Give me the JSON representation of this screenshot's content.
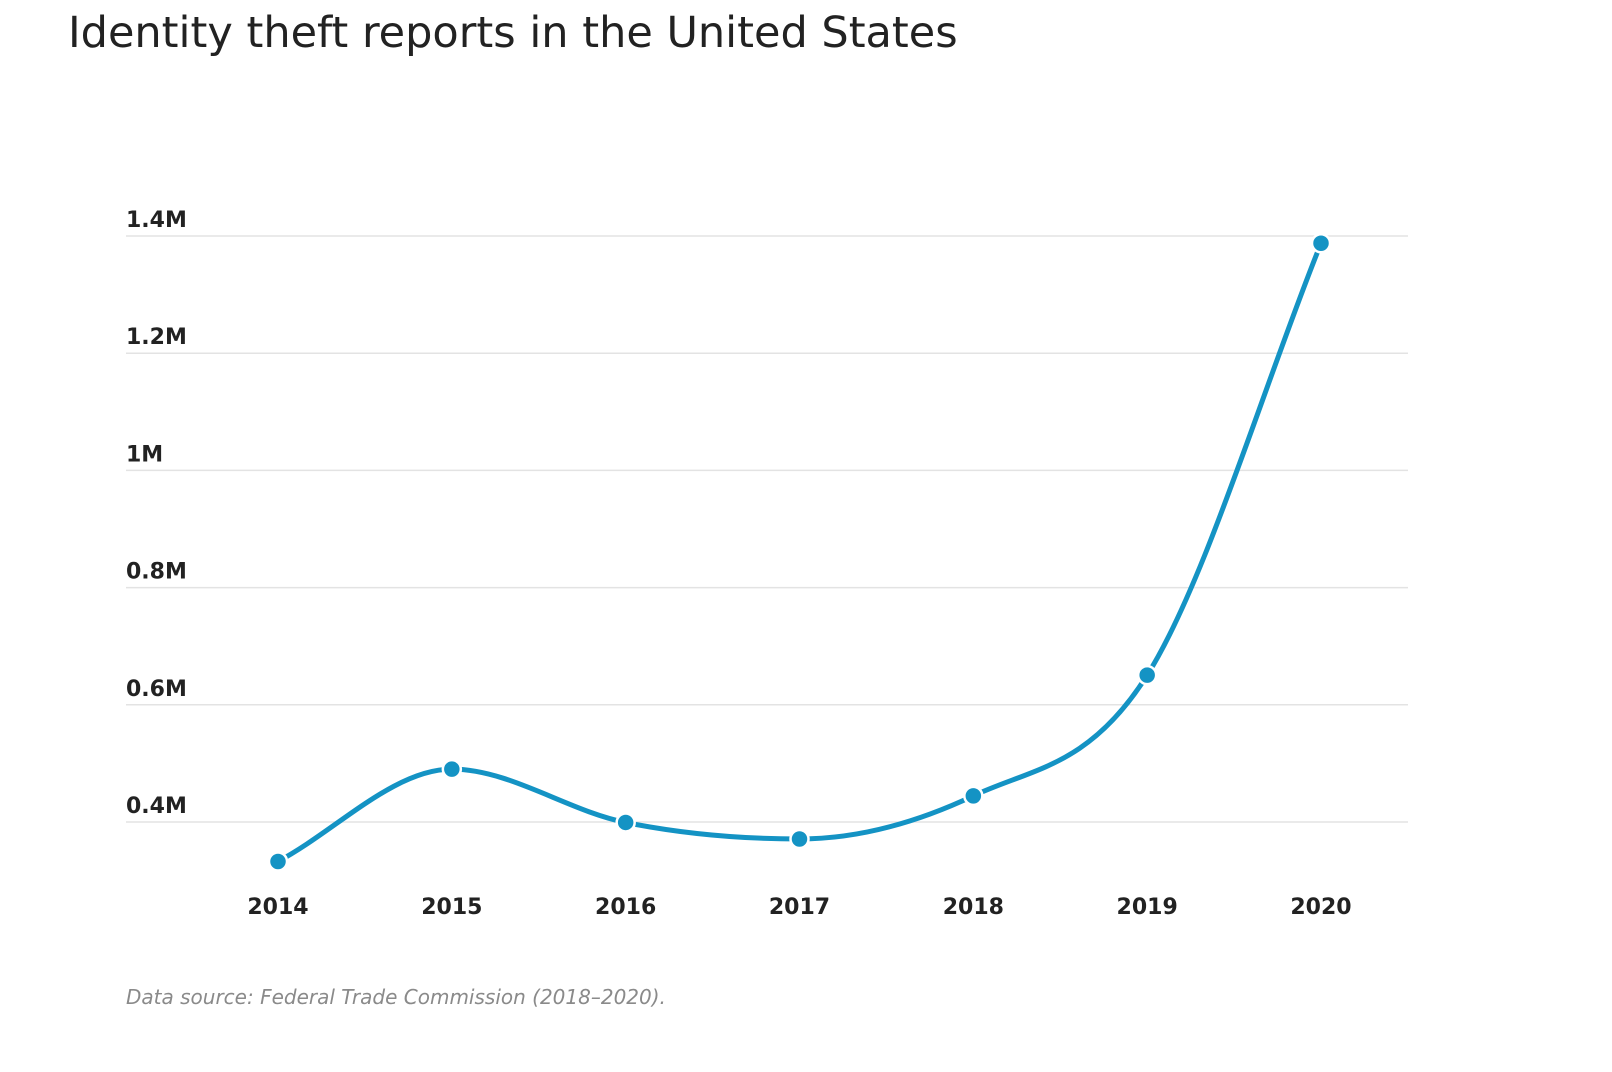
{
  "chart_data": {
    "type": "line",
    "title": "Identity theft reports in the United States",
    "xlabel": "",
    "ylabel": "",
    "categories": [
      "2014",
      "2015",
      "2016",
      "2017",
      "2018",
      "2019",
      "2020"
    ],
    "series": [
      {
        "values": [
          332646,
          490220,
          399225,
          371061,
          444602,
          650572,
          1387615
        ],
        "color": "#1493c4"
      }
    ],
    "y_ticks": [
      {
        "value": 400000,
        "label": "0.4M"
      },
      {
        "value": 600000,
        "label": "0.6M"
      },
      {
        "value": 800000,
        "label": "0.8M"
      },
      {
        "value": 1000000,
        "label": "1M"
      },
      {
        "value": 1200000,
        "label": "1.2M"
      },
      {
        "value": 1400000,
        "label": "1.4M"
      }
    ],
    "ylim": [
      400000,
      1400000
    ],
    "grid": true,
    "legend": "none",
    "smooth": true,
    "source": "Data source: Federal Trade Commission (2018–2020)."
  }
}
